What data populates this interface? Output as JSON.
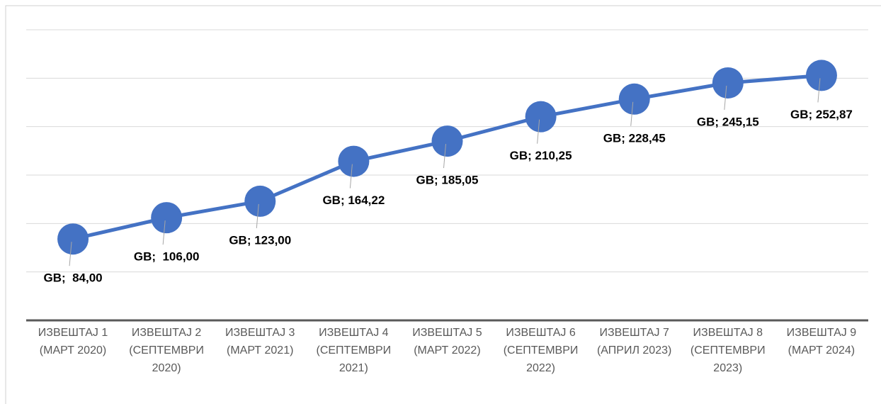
{
  "chart_data": {
    "type": "line",
    "categories": [
      "ИЗВЕШТАЈ 1 (МАРТ 2020)",
      "ИЗВЕШТАЈ 2 (СЕПТЕМВРИ 2020)",
      "ИЗВЕШТАЈ 3 (МАРТ 2021)",
      "ИЗВЕШТАЈ 4 (СЕПТЕМВРИ 2021)",
      "ИЗВЕШТАЈ 5 (МАРТ 2022)",
      "ИЗВЕШТАЈ 6 (СЕПТЕМВРИ 2022)",
      "ИЗВЕШТАЈ 7 (АПРИЛ 2023)",
      "ИЗВЕШТАЈ 8 (СЕПТЕМВРИ 2023)",
      "ИЗВЕШТАЈ 9 (МАРТ 2024)"
    ],
    "values": [
      84.0,
      106.0,
      123.0,
      164.22,
      185.05,
      210.25,
      228.45,
      245.15,
      252.87
    ],
    "value_labels": [
      "GB;  84,00",
      "GB;  106,00",
      "GB; 123,00",
      "GB; 164,22",
      "GB; 185,05",
      "GB; 210,25",
      "GB; 228,45",
      "GB; 245,15",
      "GB; 252,87"
    ],
    "color": "#4472c4",
    "ylim": [
      0,
      300
    ],
    "yticks": [
      0,
      50,
      100,
      150,
      200,
      250,
      300
    ],
    "grid": true,
    "y_tick_labels": false
  }
}
